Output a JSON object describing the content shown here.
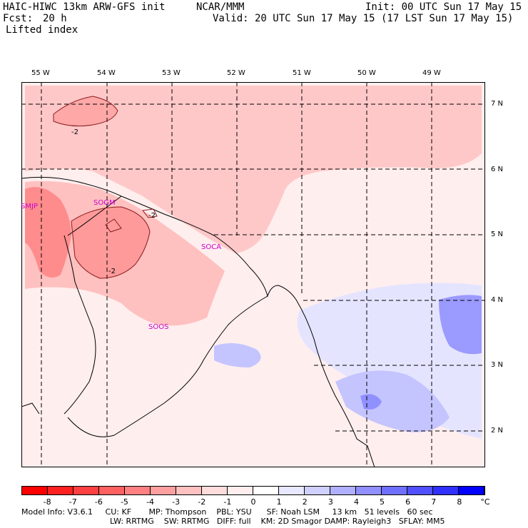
{
  "header": {
    "model_title": "HAIC-HIWC 13km ARW-GFS init",
    "org": "NCAR/MMM",
    "init": "Init: 00 UTC Sun 17 May 15",
    "fcst_label": "Fcst:",
    "fcst_value": "20 h",
    "valid": "Valid: 20 UTC Sun 17 May 15 (17 LST Sun 17 May 15)",
    "field": "Lifted index"
  },
  "axes": {
    "lon_labels": [
      "55 W",
      "54 W",
      "53 W",
      "52 W",
      "51 W",
      "50 W",
      "49 W"
    ],
    "lat_labels": [
      "7 N",
      "6 N",
      "5 N",
      "4 N",
      "3 N",
      "2 N"
    ]
  },
  "stations": [
    "SMJP",
    "SOGM",
    "SOCA",
    "SOOS"
  ],
  "contour_labels": [
    "-2",
    "-2",
    "-2"
  ],
  "colorbar": {
    "colors": [
      "#ff0000",
      "#ff2020",
      "#ff4040",
      "#ff6060",
      "#ff8080",
      "#ffa0a0",
      "#ffc0c0",
      "#ffdcdc",
      "#ffeeee",
      "#ffffff",
      "#e8e8ff",
      "#d0d0ff",
      "#b0b0ff",
      "#9090ff",
      "#7070ff",
      "#5050ff",
      "#3030ff",
      "#0000ff"
    ],
    "tick_labels": [
      "-8",
      "-7",
      "-6",
      "-5",
      "-4",
      "-3",
      "-2",
      "-1",
      "0",
      "1",
      "2",
      "3",
      "4",
      "5",
      "6",
      "7",
      "8"
    ],
    "unit": "°C"
  },
  "footer": {
    "line1": "Model Info: V3.6.1     CU: KF       MP: Thompson    PBL: YSU      SF: Noah LSM     13 km   51 levels   60 sec",
    "line2": "LW: RRTMG    SW: RRTMG   DIFF: full    KM: 2D Smagor DAMP: Rayleigh3   SFLAY: MM5"
  }
}
